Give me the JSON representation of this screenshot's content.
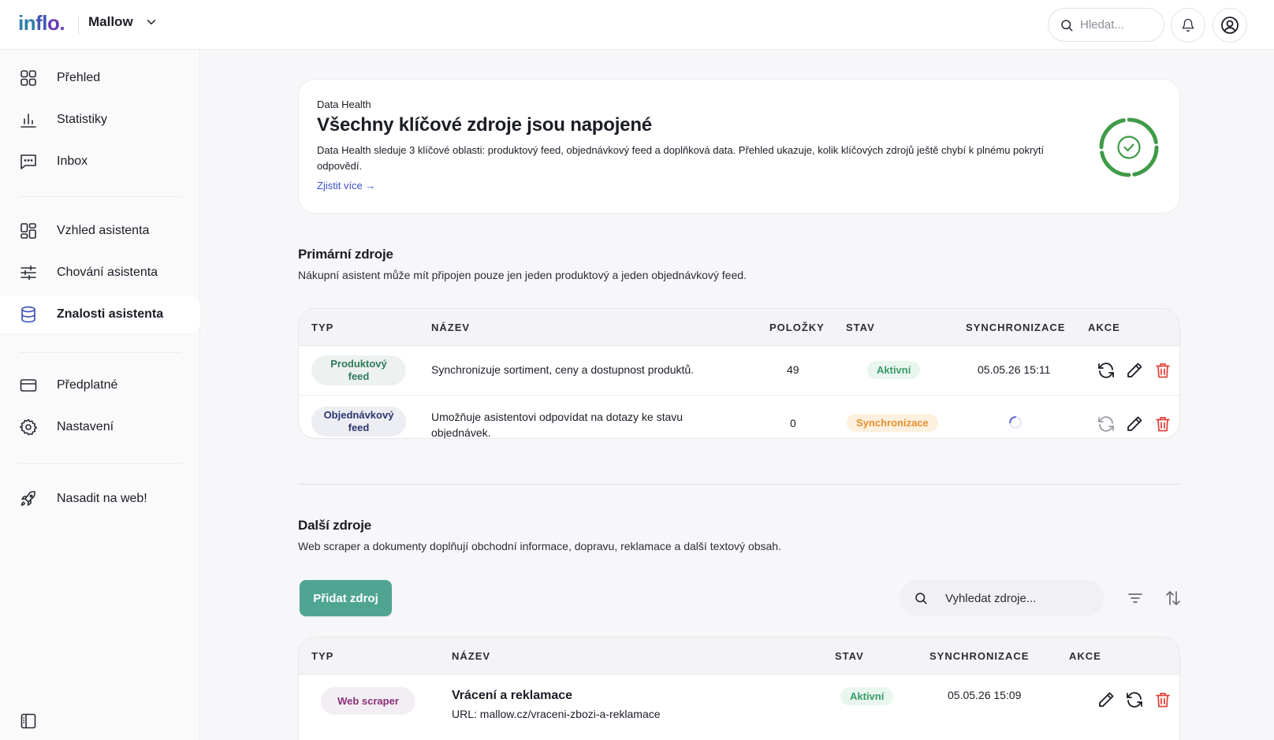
{
  "header": {
    "logo": [
      "in",
      "fl",
      "o."
    ],
    "workspace": "Mallow",
    "search_placeholder": "Hledat..."
  },
  "sidebar": {
    "items": [
      {
        "label": "Přehled",
        "icon": "grid-icon"
      },
      {
        "label": "Statistiky",
        "icon": "bar-chart-icon"
      },
      {
        "label": "Inbox",
        "icon": "chat-icon"
      },
      {
        "label": "Vzhled asistenta",
        "icon": "layout-icon"
      },
      {
        "label": "Chování asistenta",
        "icon": "sliders-icon"
      },
      {
        "label": "Znalosti asistenta",
        "icon": "database-icon"
      },
      {
        "label": "Předplatné",
        "icon": "credit-card-icon"
      },
      {
        "label": "Nastavení",
        "icon": "gear-icon"
      },
      {
        "label": "Nasadit na web!",
        "icon": "rocket-icon"
      }
    ],
    "active": "Znalosti asistenta"
  },
  "health": {
    "eyebrow": "Data Health",
    "title": "Všechny klíčové zdroje jsou napojené",
    "description": "Data Health sleduje 3 klíčové oblasti: produktový feed, objednávkový feed a doplňková data. Přehled ukazuje, kolik klíčových zdrojů ještě chybí k plnému pokrytí odpovědí.",
    "link": "Zjistit více →",
    "ring_color": "#3f9b48"
  },
  "primary": {
    "title": "Primární zdroje",
    "subtitle": "Nákupní asistent může mít připojen pouze jen jeden produktový a jeden objednávkový feed.",
    "columns": [
      "TYP",
      "NÁZEV",
      "POLOŽKY",
      "STAV",
      "SYNCHRONIZACE",
      "AKCE"
    ],
    "rows": [
      {
        "type_line1": "Produktový",
        "type_line2": "feed",
        "name": "Synchronizuje sortiment, ceny a dostupnost produktů.",
        "items": "49",
        "status": "Aktivní",
        "sync": "05.05.26 15:11"
      },
      {
        "type_line1": "Objednávkový",
        "type_line2": "feed",
        "name": "Umožňuje asistentovi odpovídat na dotazy ke stavu objednávek.",
        "items": "0",
        "status": "Synchronizace",
        "sync": ""
      }
    ]
  },
  "other": {
    "title": "Další zdroje",
    "subtitle": "Web scraper a dokumenty doplňují obchodní informace, dopravu, reklamace a další textový obsah.",
    "add_label": "Přidat zdroj",
    "search_placeholder": "Vyhledat zdroje...",
    "columns": [
      "TYP",
      "NÁZEV",
      "STAV",
      "SYNCHRONIZACE",
      "AKCE"
    ],
    "rows": [
      {
        "type": "Web scraper",
        "name": "Vrácení a reklamace",
        "url": "URL: mallow.cz/vraceni-zbozi-a-reklamace",
        "status": "Aktivní",
        "sync": "05.05.26 15:09"
      }
    ]
  },
  "colors": {
    "accent_green": "#4fa592",
    "danger": "#e0453a",
    "link": "#3b4fc9"
  }
}
